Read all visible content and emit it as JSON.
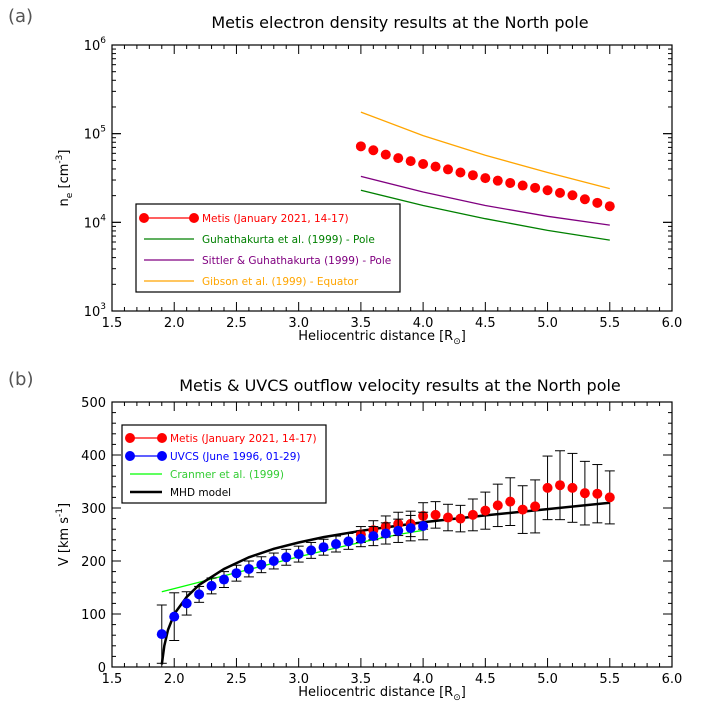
{
  "chart_data": [
    {
      "panel_label": "(a)",
      "type": "scatter",
      "title": "Metis electron density results at the North pole",
      "xlabel": "Heliocentric distance [R",
      "xlabel_sub": "⊙",
      "xlabel_close": "]",
      "ylabel": "n",
      "ylabel_sub": "e",
      "ylabel_unit": " [cm",
      "ylabel_sup": "-3",
      "ylabel_close": "]",
      "xlim": [
        1.5,
        6.0
      ],
      "ylim": [
        1000,
        1000000
      ],
      "yscale": "log",
      "xticks": [
        "1.5",
        "2.0",
        "2.5",
        "3.0",
        "3.5",
        "4.0",
        "4.5",
        "5.0",
        "5.5",
        "6.0"
      ],
      "yticks": [
        {
          "base": "10",
          "exp": "3",
          "value": 1000
        },
        {
          "base": "10",
          "exp": "4",
          "value": 10000
        },
        {
          "base": "10",
          "exp": "5",
          "value": 100000
        },
        {
          "base": "10",
          "exp": "6",
          "value": 1000000
        }
      ],
      "grid": false,
      "legend_position": "lower-left",
      "series": [
        {
          "name": "Metis (January 2021, 14-17)",
          "color": "#ff0000",
          "style": "markers",
          "x": [
            3.5,
            3.6,
            3.7,
            3.8,
            3.9,
            4.0,
            4.1,
            4.2,
            4.3,
            4.4,
            4.5,
            4.6,
            4.7,
            4.8,
            4.9,
            5.0,
            5.1,
            5.2,
            5.3,
            5.4,
            5.5
          ],
          "y": [
            72000,
            65000,
            58000,
            53000,
            49000,
            45500,
            42500,
            39500,
            36500,
            34000,
            31500,
            29500,
            27800,
            26000,
            24500,
            23000,
            21500,
            20200,
            18200,
            16600,
            15200
          ]
        },
        {
          "name": "Guhathakurta et al. (1999) - Pole",
          "color": "#008000",
          "style": "line",
          "x": [
            3.5,
            4.0,
            4.5,
            5.0,
            5.5
          ],
          "y": [
            23000,
            15500,
            11000,
            8100,
            6300
          ]
        },
        {
          "name": "Sittler & Guhathakurta (1999) - Pole",
          "color": "#800080",
          "style": "line",
          "x": [
            3.5,
            4.0,
            4.5,
            5.0,
            5.5
          ],
          "y": [
            33000,
            22000,
            15500,
            11700,
            9300
          ]
        },
        {
          "name": "Gibson et al. (1999) - Equator",
          "color": "#ffa500",
          "style": "line",
          "x": [
            3.5,
            4.0,
            4.5,
            5.0,
            5.5
          ],
          "y": [
            175000,
            95000,
            57000,
            36500,
            24000
          ]
        }
      ]
    },
    {
      "panel_label": "(b)",
      "type": "scatter",
      "title": "Metis & UVCS outflow velocity results at the North pole",
      "xlabel": "Heliocentric distance [R",
      "xlabel_sub": "⊙",
      "xlabel_close": "]",
      "ylabel": "V [km s",
      "ylabel_sup": "-1",
      "ylabel_close": "]",
      "xlim": [
        1.5,
        6.0
      ],
      "ylim": [
        0,
        500
      ],
      "yscale": "linear",
      "xticks": [
        "1.5",
        "2.0",
        "2.5",
        "3.0",
        "3.5",
        "4.0",
        "4.5",
        "5.0",
        "5.5",
        "6.0"
      ],
      "yticks": [
        "0",
        "100",
        "200",
        "300",
        "400",
        "500"
      ],
      "grid": false,
      "legend_position": "upper-left",
      "series": [
        {
          "name": "Metis (January 2021, 14-17)",
          "color": "#ff0000",
          "style": "markers",
          "x": [
            3.5,
            3.6,
            3.7,
            3.8,
            3.9,
            4.0,
            4.1,
            4.2,
            4.3,
            4.4,
            4.5,
            4.6,
            4.7,
            4.8,
            4.9,
            5.0,
            5.1,
            5.2,
            5.3,
            5.4,
            5.5
          ],
          "y": [
            250,
            258,
            265,
            270,
            270,
            285,
            287,
            282,
            280,
            287,
            295,
            305,
            312,
            297,
            303,
            338,
            343,
            338,
            328,
            327,
            320
          ],
          "err": [
            15,
            18,
            20,
            22,
            24,
            25,
            25,
            25,
            25,
            30,
            35,
            40,
            45,
            45,
            50,
            60,
            65,
            65,
            60,
            55,
            50
          ]
        },
        {
          "name": "UVCS (June 1996, 01-29)",
          "color": "#0000ff",
          "style": "markers",
          "x": [
            1.9,
            2.0,
            2.1,
            2.2,
            2.3,
            2.4,
            2.5,
            2.6,
            2.7,
            2.8,
            2.9,
            3.0,
            3.1,
            3.2,
            3.3,
            3.4,
            3.5,
            3.6,
            3.7,
            3.8,
            3.9,
            4.0
          ],
          "y": [
            62,
            95,
            120,
            137,
            153,
            165,
            177,
            185,
            193,
            200,
            207,
            213,
            220,
            226,
            232,
            237,
            242,
            247,
            252,
            257,
            262,
            266
          ],
          "err": [
            55,
            45,
            22,
            15,
            15,
            15,
            15,
            15,
            15,
            15,
            15,
            15,
            15,
            15,
            15,
            15,
            15,
            18,
            20,
            22,
            24,
            26
          ]
        },
        {
          "name": "Cranmer et al. (1999)",
          "color": "#00ff00",
          "style": "line",
          "x": [
            1.9,
            2.0,
            2.2,
            2.4,
            2.6,
            2.8,
            3.0,
            3.2,
            3.4,
            3.6,
            3.8,
            4.0
          ],
          "y": [
            142,
            148,
            160,
            172,
            184,
            196,
            208,
            219,
            230,
            240,
            250,
            258
          ]
        },
        {
          "name": "MHD model",
          "color": "#000000",
          "style": "line",
          "x": [
            1.9,
            1.92,
            1.95,
            2.0,
            2.1,
            2.2,
            2.4,
            2.6,
            2.8,
            3.0,
            3.2,
            3.5,
            4.0,
            4.5,
            5.0,
            5.5
          ],
          "y": [
            5,
            40,
            70,
            100,
            132,
            155,
            185,
            207,
            223,
            235,
            245,
            257,
            273,
            286,
            298,
            310
          ]
        }
      ]
    }
  ]
}
